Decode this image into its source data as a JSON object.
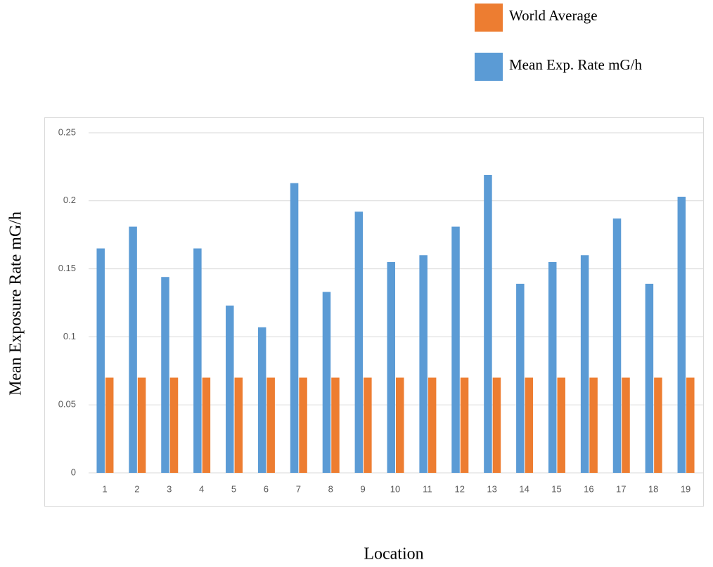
{
  "chart_data": {
    "type": "bar",
    "xlabel": "Location",
    "ylabel": "Mean Exposure Rate mG/h",
    "categories": [
      "1",
      "2",
      "3",
      "4",
      "5",
      "6",
      "7",
      "8",
      "9",
      "10",
      "11",
      "12",
      "13",
      "14",
      "15",
      "16",
      "17",
      "18",
      "19"
    ],
    "series": [
      {
        "name": "Mean Exp. Rate mG/h",
        "color": "#5b9bd5",
        "values": [
          0.165,
          0.181,
          0.144,
          0.165,
          0.123,
          0.107,
          0.213,
          0.133,
          0.192,
          0.155,
          0.16,
          0.181,
          0.219,
          0.139,
          0.155,
          0.16,
          0.187,
          0.139,
          0.203
        ]
      },
      {
        "name": "World Average",
        "color": "#ed7d31",
        "values": [
          0.07,
          0.07,
          0.07,
          0.07,
          0.07,
          0.07,
          0.07,
          0.07,
          0.07,
          0.07,
          0.07,
          0.07,
          0.07,
          0.07,
          0.07,
          0.07,
          0.07,
          0.07,
          0.07
        ]
      }
    ],
    "ylim": [
      0,
      0.25
    ],
    "yticks": [
      0,
      0.05,
      0.1,
      0.15,
      0.2,
      0.25
    ],
    "grid": true
  }
}
